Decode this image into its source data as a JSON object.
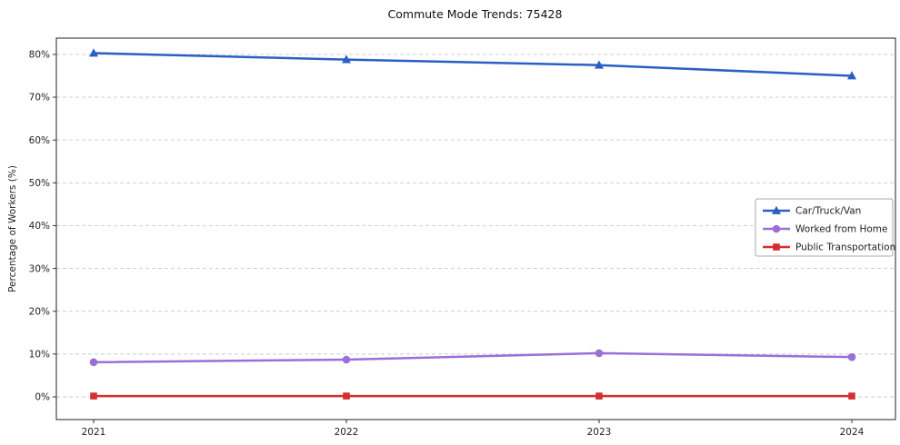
{
  "chart_data": {
    "type": "line",
    "title": "Commute Mode Trends: 75428",
    "xlabel": "",
    "ylabel": "Percentage of Workers (%)",
    "x": [
      2021,
      2022,
      2023,
      2024
    ],
    "x_labels": [
      "2021",
      "2022",
      "2023",
      "2024"
    ],
    "yticks": [
      0,
      10,
      20,
      30,
      40,
      50,
      60,
      70,
      80
    ],
    "ytick_labels": [
      "0%",
      "10%",
      "20%",
      "30%",
      "40%",
      "50%",
      "60%",
      "70%",
      "80%"
    ],
    "ylim": [
      -5.3,
      83.8
    ],
    "grid": "horizontal-dashed",
    "legend_position": "center-right",
    "series": [
      {
        "name": "Car/Truck/Van",
        "color": "#2a5fc4",
        "marker": "triangle",
        "values": [
          80.3,
          78.8,
          77.5,
          75.0
        ]
      },
      {
        "name": "Worked from Home",
        "color": "#9a6fd6",
        "marker": "circle",
        "values": [
          8.1,
          8.7,
          10.2,
          9.3
        ]
      },
      {
        "name": "Public Transportation",
        "color": "#d62e2e",
        "marker": "square",
        "values": [
          0.2,
          0.2,
          0.2,
          0.2
        ]
      }
    ],
    "colors": {
      "grid": "#c9c9c9",
      "axis": "#333333",
      "legend_border": "#aaaaaa",
      "legend_bg": "#ffffff",
      "text": "#222222"
    }
  }
}
